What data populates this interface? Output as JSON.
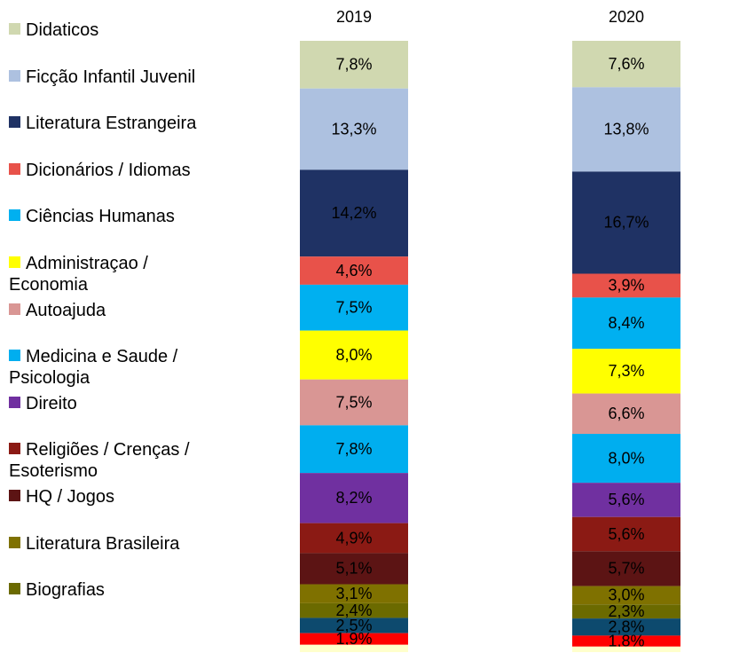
{
  "chart_data": {
    "type": "stacked_bar",
    "categories": [
      "2019",
      "2020"
    ],
    "ylim": [
      0,
      100
    ],
    "legend": "left",
    "series": [
      {
        "name": "Didaticos",
        "color": "#d0d8b0",
        "values": [
          7.8,
          7.6
        ],
        "value_labels": [
          "7,8%",
          "7,6%"
        ]
      },
      {
        "name": "Ficção Infantil Juvenil",
        "color": "#adc1e0",
        "values": [
          13.3,
          13.8
        ],
        "value_labels": [
          "13,3%",
          "13,8%"
        ]
      },
      {
        "name": "Literatura Estrangeira",
        "color": "#1f3264",
        "values": [
          14.2,
          16.7
        ],
        "value_labels": [
          "14,2%",
          "16,7%"
        ]
      },
      {
        "name": "Dicionários / Idiomas",
        "color": "#e8524a",
        "values": [
          4.6,
          3.9
        ],
        "value_labels": [
          "4,6%",
          "3,9%"
        ]
      },
      {
        "name": "Ciências Humanas",
        "color": "#00b0f0",
        "values": [
          7.5,
          8.4
        ],
        "value_labels": [
          "7,5%",
          "8,4%"
        ]
      },
      {
        "name": "Administraçao / Economia",
        "color": "#ffff00",
        "values": [
          8.0,
          7.3
        ],
        "value_labels": [
          "8,0%",
          "7,3%"
        ]
      },
      {
        "name": "Autoajuda",
        "color": "#d99694",
        "values": [
          7.5,
          6.6
        ],
        "value_labels": [
          "7,5%",
          "6,6%"
        ]
      },
      {
        "name": "Medicina e Saude / Psicologia",
        "color": "#00aeef",
        "values": [
          7.8,
          8.0
        ],
        "value_labels": [
          "7,8%",
          "8,0%"
        ]
      },
      {
        "name": "Direito",
        "color": "#7030a0",
        "values": [
          8.2,
          5.6
        ],
        "value_labels": [
          "8,2%",
          "5,6%"
        ]
      },
      {
        "name": "Religiões / Crenças / Esoterismo",
        "color": "#8b1a14",
        "values": [
          4.9,
          5.6
        ],
        "value_labels": [
          "4,9%",
          "5,6%"
        ]
      },
      {
        "name": "HQ / Jogos",
        "color": "#5c1414",
        "values": [
          5.1,
          5.7
        ],
        "value_labels": [
          "5,1%",
          "5,7%"
        ]
      },
      {
        "name": "Literatura Brasileira",
        "color": "#7f7100",
        "values": [
          3.1,
          3.0
        ],
        "value_labels": [
          "3,1%",
          "3,0%"
        ]
      },
      {
        "name": "Biografias",
        "color": "#6b6a00",
        "values": [
          2.4,
          2.3
        ],
        "value_labels": [
          "2,4%",
          "2,3%"
        ]
      },
      {
        "color": "#0d4a6e",
        "values": [
          2.5,
          2.8
        ],
        "value_labels": [
          "2,5%",
          "2,8%"
        ]
      },
      {
        "color": "#ff0000",
        "values": [
          1.9,
          1.8
        ],
        "value_labels": [
          "1,9%",
          "1,8%"
        ]
      },
      {
        "color": "#ffffcc",
        "values": [
          1.2,
          0.9
        ]
      }
    ]
  }
}
